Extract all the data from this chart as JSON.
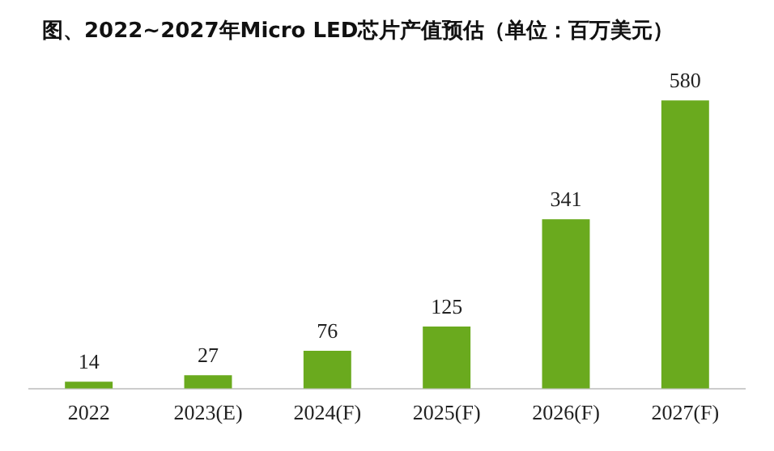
{
  "chart_data": {
    "type": "bar",
    "title": "图、2022~2027年Micro LED芯片产值预估（单位：百万美元）",
    "categories": [
      "2022",
      "2023(E)",
      "2024(F)",
      "2025(F)",
      "2026(F)",
      "2027(F)"
    ],
    "values": [
      14,
      27,
      76,
      125,
      341,
      580
    ],
    "color": "#6aaa1e",
    "data_labels": true,
    "grid": false,
    "legend": false
  }
}
